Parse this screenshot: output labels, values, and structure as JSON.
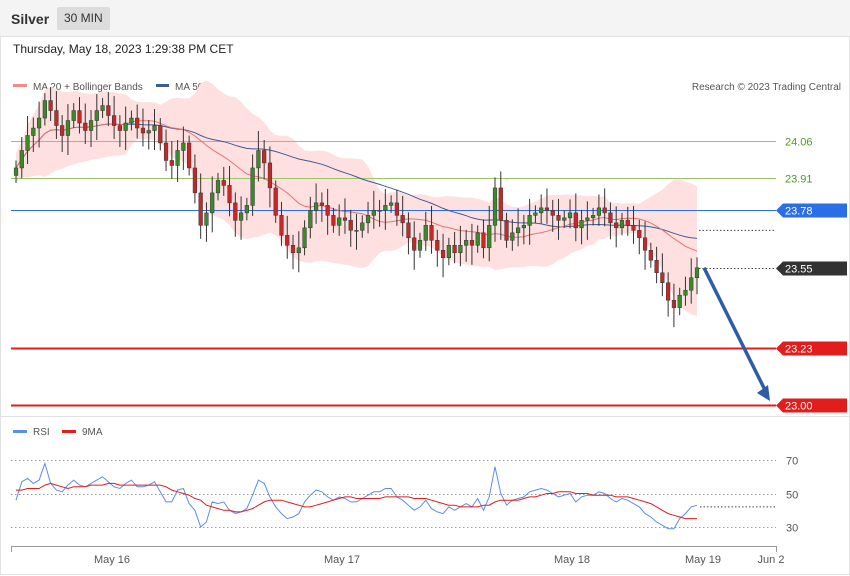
{
  "header": {
    "instrument": "Silver",
    "timeframe": "30 MIN"
  },
  "timestamp": "Thursday, May 18, 2023 1:29:38 PM CET",
  "legend": {
    "ma20_label": "MA 20 + Bollinger Bands",
    "ma50_label": "MA 50",
    "copyright": "Research © 2023 Trading Central",
    "rsi_label": "RSI",
    "rsi_ma_label": "9MA"
  },
  "colors": {
    "bull": "#3a8a2b",
    "bear": "#c62828",
    "ma20": "#e57373",
    "ma50": "#3f5a96",
    "band": "#fde0df",
    "support": "#e31c1c",
    "resistance": "#9ac36a",
    "pivot": "#2b6fe6",
    "last": "#333333",
    "rsi": "#5b8def"
  },
  "chart_data": [
    {
      "type": "candlestick",
      "ylim": [
        22.95,
        24.45
      ],
      "x_ticks": [
        "May 16",
        "May 17",
        "May 18",
        "May 19",
        "Jun 2"
      ],
      "levels": [
        {
          "value": 24.06,
          "label": "24.06",
          "kind": "resistance"
        },
        {
          "value": 23.91,
          "label": "23.91",
          "kind": "resistance"
        },
        {
          "value": 23.78,
          "label": "23.78",
          "kind": "pivot"
        },
        {
          "value": 23.55,
          "label": "23.55",
          "kind": "last"
        },
        {
          "value": 23.23,
          "label": "23.23",
          "kind": "support"
        },
        {
          "value": 23.0,
          "label": "23.00",
          "kind": "support"
        }
      ],
      "forecast_arrow": {
        "from": 23.55,
        "to": 23.0
      },
      "closes": [
        23.95,
        24.02,
        24.08,
        24.11,
        24.15,
        24.22,
        24.18,
        24.12,
        24.08,
        24.14,
        24.18,
        24.13,
        24.1,
        24.14,
        24.18,
        24.2,
        24.16,
        24.12,
        24.1,
        24.13,
        24.15,
        24.11,
        24.09,
        24.1,
        24.12,
        24.05,
        23.98,
        23.96,
        24.02,
        24.05,
        23.95,
        23.85,
        23.72,
        23.77,
        23.85,
        23.9,
        23.88,
        23.81,
        23.74,
        23.77,
        23.8,
        23.95,
        24.02,
        23.97,
        23.87,
        23.76,
        23.68,
        23.64,
        23.61,
        23.63,
        23.71,
        23.78,
        23.81,
        23.8,
        23.76,
        23.72,
        23.75,
        23.74,
        23.7,
        23.7,
        23.73,
        23.76,
        23.78,
        23.78,
        23.8,
        23.81,
        23.76,
        23.73,
        23.67,
        23.62,
        23.66,
        23.72,
        23.66,
        23.62,
        23.59,
        23.64,
        23.61,
        23.64,
        23.66,
        23.64,
        23.69,
        23.63,
        23.72,
        23.87,
        23.74,
        23.66,
        23.69,
        23.71,
        23.72,
        23.76,
        23.77,
        23.79,
        23.78,
        23.76,
        23.74,
        23.75,
        23.77,
        23.71,
        23.74,
        23.75,
        23.76,
        23.79,
        23.77,
        23.73,
        23.71,
        23.74,
        23.72,
        23.7,
        23.67,
        23.62,
        23.58,
        23.53,
        23.49,
        23.42,
        23.39,
        23.44,
        23.46,
        23.51,
        23.55
      ],
      "rsi": {
        "ylim": [
          20,
          80
        ],
        "ticks": [
          70,
          50,
          30
        ],
        "rsi_values": [
          46,
          57,
          59,
          56,
          58,
          68,
          56,
          52,
          51,
          55,
          58,
          55,
          54,
          56,
          58,
          60,
          57,
          54,
          53,
          56,
          58,
          54,
          54,
          55,
          57,
          51,
          45,
          45,
          52,
          53,
          44,
          40,
          30,
          33,
          45,
          44,
          45,
          40,
          38,
          39,
          41,
          49,
          58,
          56,
          48,
          42,
          38,
          35,
          36,
          38,
          45,
          49,
          52,
          51,
          48,
          46,
          48,
          47,
          45,
          45,
          47,
          49,
          51,
          51,
          53,
          53,
          48,
          46,
          43,
          40,
          42,
          46,
          41,
          39,
          38,
          42,
          40,
          42,
          44,
          42,
          47,
          40,
          48,
          66,
          50,
          43,
          46,
          47,
          48,
          51,
          52,
          53,
          52,
          50,
          48,
          49,
          50,
          45,
          48,
          49,
          49,
          51,
          50,
          47,
          45,
          47,
          46,
          44,
          42,
          38,
          36,
          33,
          31,
          29,
          29,
          35,
          38,
          42,
          43
        ],
        "rsi_ma_values": [
          52,
          52,
          53,
          53,
          53,
          55,
          56,
          55,
          54,
          53,
          54,
          54,
          54,
          55,
          55,
          55,
          56,
          56,
          55,
          55,
          55,
          55,
          55,
          55,
          55,
          55,
          54,
          52,
          51,
          50,
          49,
          47,
          46,
          43,
          42,
          41,
          40,
          40,
          39,
          39,
          40,
          41,
          43,
          45,
          46,
          46,
          46,
          45,
          44,
          43,
          42,
          42,
          43,
          44,
          45,
          46,
          47,
          48,
          48,
          47,
          47,
          47,
          47,
          47,
          48,
          48,
          48,
          48,
          48,
          47,
          47,
          47,
          46,
          45,
          44,
          43,
          43,
          42,
          42,
          42,
          42,
          43,
          43,
          45,
          46,
          46,
          46,
          46,
          47,
          48,
          48,
          49,
          50,
          50,
          51,
          51,
          51,
          50,
          50,
          50,
          49,
          49,
          49,
          49,
          48,
          48,
          48,
          47,
          46,
          45,
          44,
          42,
          40,
          38,
          37,
          36,
          35,
          35,
          35
        ]
      }
    }
  ]
}
